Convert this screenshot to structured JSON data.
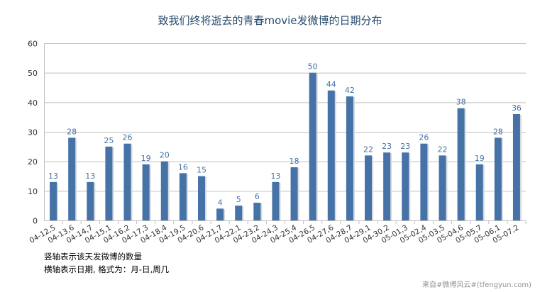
{
  "chart_data": {
    "type": "bar",
    "title": "致我们终将逝去的青春movie发微博的日期分布",
    "xlabel": "",
    "ylabel": "",
    "ylim": [
      0,
      60
    ],
    "yticks": [
      0,
      10,
      20,
      30,
      40,
      50,
      60
    ],
    "grid": true,
    "categories": [
      "04-12,5",
      "04-13,6",
      "04-14,7",
      "04-15,1",
      "04-16,2",
      "04-17,3",
      "04-18,4",
      "04-19,5",
      "04-20,6",
      "04-21,7",
      "04-22,1",
      "04-23,2",
      "04-24,3",
      "04-25,4",
      "04-26,5",
      "04-27,6",
      "04-28,7",
      "04-29,1",
      "04-30,2",
      "05-01,3",
      "05-02,4",
      "05-03,5",
      "05-04,6",
      "05-05,7",
      "05-06,1",
      "05-07,2"
    ],
    "values": [
      13,
      28,
      13,
      25,
      26,
      19,
      20,
      16,
      15,
      4,
      5,
      6,
      13,
      18,
      50,
      44,
      42,
      22,
      23,
      23,
      26,
      22,
      38,
      19,
      28,
      36
    ],
    "bar_color": "#4572a7",
    "label_color": "#4572a7",
    "grid_color": "#c0c0c0"
  },
  "notes": {
    "line1": "竖轴表示该天发微博的数量",
    "line2": "横轴表示日期, 格式为：月-日,周几"
  },
  "credit": "来自#微博风云#(tfengyun.com)"
}
